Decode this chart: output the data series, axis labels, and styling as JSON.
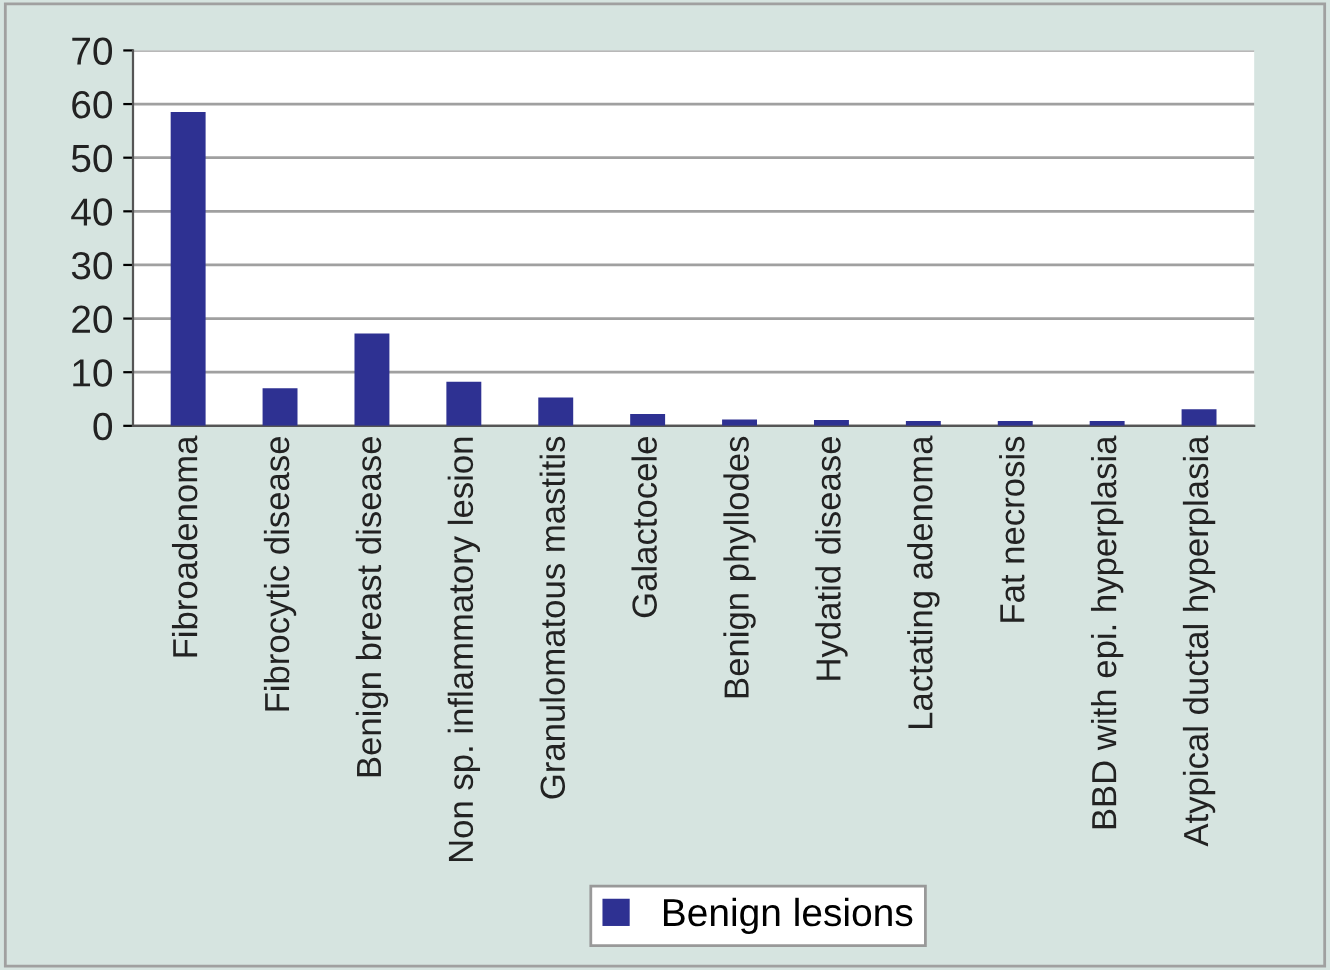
{
  "chart_data": {
    "type": "bar",
    "categories": [
      "Fibroadenoma",
      "Fibrocytic disease",
      "Benign breast disease",
      "Non sp. inflammatory lesion",
      "Granulomatous mastitis",
      "Galactocele",
      "Benign phyllodes",
      "Hydatid disease",
      "Lactating adenoma",
      "Fat necrosis",
      "BBD with epi. hyperplasia",
      "Atypical ductal hyperplasia"
    ],
    "series": [
      {
        "name": "Benign lesions",
        "color": "#2e3192",
        "values": [
          58.5,
          7,
          17.2,
          8.2,
          5.3,
          2.2,
          1.2,
          1.1,
          0.9,
          0.9,
          0.9,
          3.1
        ]
      }
    ],
    "ylim": [
      0,
      70
    ],
    "yticks": [
      0,
      10,
      20,
      30,
      40,
      50,
      60,
      70
    ],
    "grid": "y",
    "legend": "bottom"
  }
}
